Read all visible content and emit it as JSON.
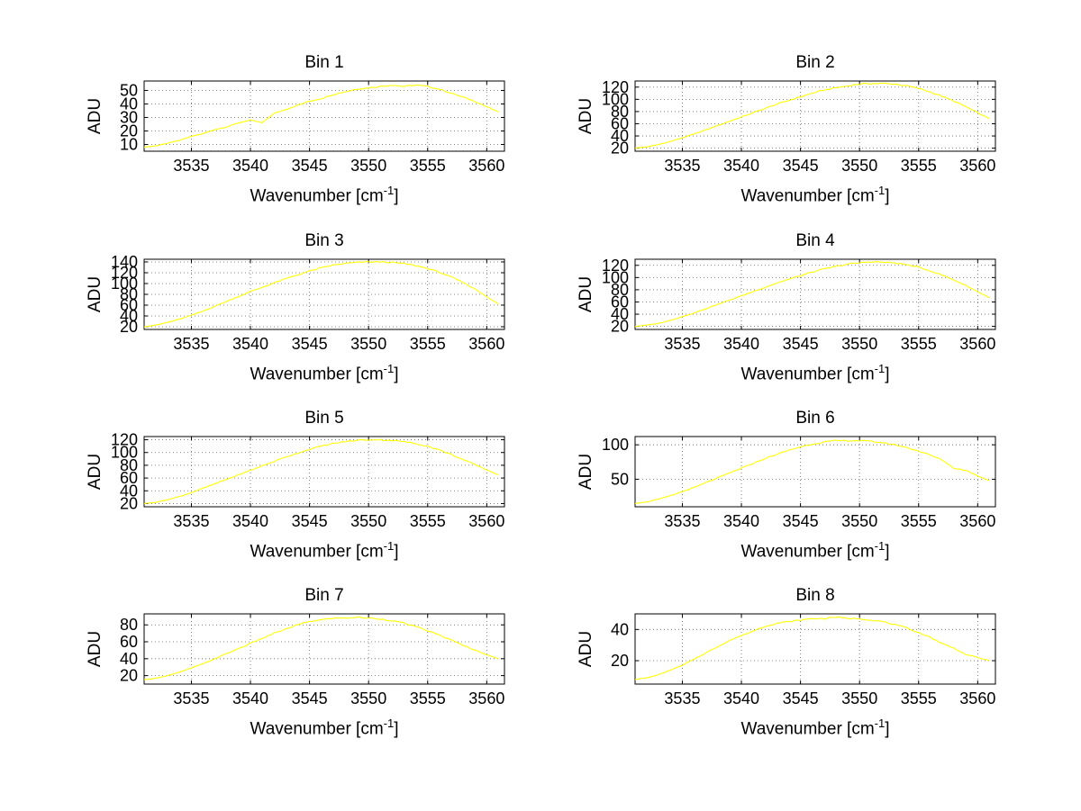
{
  "page": {
    "background": "#ffffff"
  },
  "style": {
    "curve_color": "#ffff00",
    "grid_color": "#606060",
    "axis_color": "#000000",
    "text_color": "#000000"
  },
  "axis": {
    "xlabel_pre": "Wavenumber [cm",
    "xlabel_sup": "-1",
    "xlabel_post": "]",
    "ylabel": "ADU",
    "xlim": [
      3531,
      3561.5
    ],
    "xticks": [
      3535,
      3540,
      3545,
      3550,
      3555,
      3560
    ],
    "grid": true,
    "legend": "none"
  },
  "chart_data": [
    {
      "type": "line",
      "title": "Bin 1",
      "ylabel": "ADU",
      "ylim": [
        5,
        57
      ],
      "yticks": [
        10,
        20,
        30,
        40,
        50
      ],
      "x_start": 3531,
      "x_step": 1,
      "values": [
        8,
        9,
        11,
        13,
        16,
        18,
        21,
        23,
        26,
        28,
        26,
        33,
        36,
        39,
        42,
        44,
        47,
        49,
        51,
        52,
        53,
        54,
        53,
        54,
        53,
        51,
        48,
        45,
        42,
        38,
        34
      ]
    },
    {
      "type": "line",
      "title": "Bin 2",
      "ylabel": "ADU",
      "ylim": [
        15,
        130
      ],
      "yticks": [
        20,
        40,
        60,
        80,
        100,
        120
      ],
      "x_start": 3531,
      "x_step": 1,
      "values": [
        20,
        22,
        26,
        31,
        37,
        43,
        50,
        57,
        64,
        71,
        78,
        85,
        92,
        98,
        104,
        110,
        115,
        119,
        122,
        125,
        126,
        126,
        125,
        122,
        118,
        112,
        105,
        97,
        88,
        78,
        68
      ]
    },
    {
      "type": "line",
      "title": "Bin 3",
      "ylabel": "ADU",
      "ylim": [
        15,
        145
      ],
      "yticks": [
        20,
        40,
        60,
        80,
        100,
        120,
        140
      ],
      "x_start": 3531,
      "x_step": 1,
      "values": [
        20,
        23,
        28,
        34,
        41,
        49,
        58,
        67,
        76,
        85,
        93,
        101,
        109,
        116,
        123,
        129,
        134,
        137,
        139,
        140,
        140,
        139,
        137,
        133,
        128,
        121,
        112,
        102,
        90,
        76,
        62
      ]
    },
    {
      "type": "line",
      "title": "Bin 4",
      "ylabel": "ADU",
      "ylim": [
        15,
        130
      ],
      "yticks": [
        20,
        40,
        60,
        80,
        100,
        120
      ],
      "x_start": 3531,
      "x_step": 1,
      "values": [
        20,
        22,
        25,
        30,
        36,
        42,
        49,
        56,
        63,
        70,
        77,
        84,
        91,
        97,
        103,
        109,
        114,
        118,
        122,
        124,
        126,
        125,
        124,
        121,
        117,
        111,
        104,
        96,
        87,
        77,
        67
      ]
    },
    {
      "type": "line",
      "title": "Bin 5",
      "ylabel": "ADU",
      "ylim": [
        15,
        125
      ],
      "yticks": [
        20,
        40,
        60,
        80,
        100,
        120
      ],
      "x_start": 3531,
      "x_step": 1,
      "values": [
        20,
        22,
        26,
        31,
        37,
        44,
        51,
        58,
        65,
        72,
        79,
        86,
        93,
        99,
        105,
        110,
        114,
        117,
        119,
        120,
        120,
        119,
        117,
        114,
        110,
        104,
        97,
        89,
        81,
        73,
        65
      ]
    },
    {
      "type": "line",
      "title": "Bin 6",
      "ylabel": "ADU",
      "ylim": [
        10,
        112
      ],
      "yticks": [
        50,
        100
      ],
      "x_start": 3531,
      "x_step": 1,
      "values": [
        15,
        17,
        21,
        26,
        32,
        38,
        45,
        52,
        59,
        66,
        73,
        80,
        86,
        92,
        97,
        101,
        104,
        106,
        106,
        106,
        105,
        103,
        100,
        96,
        91,
        85,
        78,
        66,
        63,
        55,
        48
      ]
    },
    {
      "type": "line",
      "title": "Bin 7",
      "ylabel": "ADU",
      "ylim": [
        10,
        93
      ],
      "yticks": [
        20,
        40,
        60,
        80
      ],
      "x_start": 3531,
      "x_step": 1,
      "values": [
        15,
        17,
        20,
        24,
        29,
        34,
        40,
        46,
        52,
        58,
        64,
        70,
        75,
        80,
        84,
        86,
        88,
        88,
        89,
        88,
        87,
        85,
        82,
        78,
        73,
        68,
        62,
        56,
        50,
        45,
        40
      ]
    },
    {
      "type": "line",
      "title": "Bin 8",
      "ylabel": "ADU",
      "ylim": [
        5,
        50
      ],
      "yticks": [
        20,
        40
      ],
      "x_start": 3531,
      "x_step": 1,
      "values": [
        8,
        9,
        11,
        14,
        17,
        21,
        25,
        29,
        33,
        36,
        39,
        42,
        44,
        45,
        46,
        47,
        47,
        48,
        47,
        47,
        46,
        45,
        43,
        41,
        38,
        35,
        31,
        28,
        24,
        22,
        20
      ]
    }
  ]
}
